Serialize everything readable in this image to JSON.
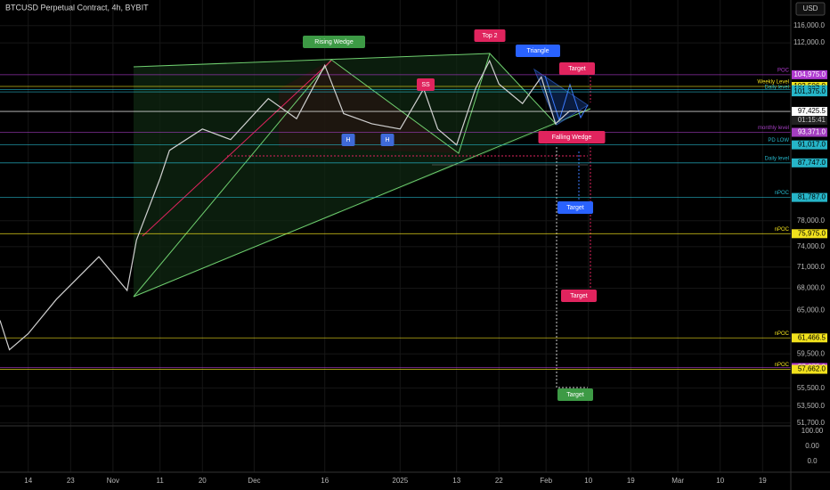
{
  "chart_data": {
    "type": "line",
    "title": "BTCUSD Perpetual Contract, 4h, BYBIT",
    "currency_button": "USD",
    "log_scale": true,
    "grid": true,
    "color": "#d0d0d0",
    "x": [
      7,
      9,
      13,
      19,
      28,
      34,
      36,
      41,
      43,
      50,
      56,
      64,
      70,
      76,
      80,
      86,
      92,
      97,
      100,
      104,
      108,
      111,
      113,
      118,
      122,
      125,
      128,
      131
    ],
    "series": [
      {
        "color": "#d0d0d0",
        "values": [
          63700,
          60000,
          62000,
          66500,
          72500,
          67700,
          75000,
          85000,
          90000,
          94000,
          92000,
          100000,
          96000,
          107000,
          97000,
          95000,
          94000,
          102000,
          94000,
          91000,
          102000,
          108000,
          103000,
          99000,
          104500,
          95000,
          97500,
          97425.5
        ]
      }
    ],
    "xlim": [
      7,
      175
    ],
    "xticks": [
      {
        "value": 13,
        "label": "14"
      },
      {
        "value": 22,
        "label": "23"
      },
      {
        "value": 31,
        "label": "Nov"
      },
      {
        "value": 41,
        "label": "11"
      },
      {
        "value": 50,
        "label": "20"
      },
      {
        "value": 61,
        "label": "Dec"
      },
      {
        "value": 76,
        "label": "16"
      },
      {
        "value": 92,
        "label": "2025"
      },
      {
        "value": 104,
        "label": "13"
      },
      {
        "value": 113,
        "label": "22"
      },
      {
        "value": 123,
        "label": "Feb"
      },
      {
        "value": 132,
        "label": "10"
      },
      {
        "value": 141,
        "label": "19"
      },
      {
        "value": 151,
        "label": "Mar"
      },
      {
        "value": 160,
        "label": "10"
      },
      {
        "value": 169,
        "label": "19"
      }
    ],
    "ylim": [
      51400,
      122200
    ],
    "yticks": [
      {
        "value": 116000,
        "label": "116,000.0"
      },
      {
        "value": 112000,
        "label": "112,000.0"
      },
      {
        "value": 78000,
        "label": "78,000.0"
      },
      {
        "value": 74000,
        "label": "74,000.0"
      },
      {
        "value": 71000,
        "label": "71,000.0"
      },
      {
        "value": 68000,
        "label": "68,000.0"
      },
      {
        "value": 65000,
        "label": "65,000.0"
      },
      {
        "value": 59500,
        "label": "59,500.0"
      },
      {
        "value": 55500,
        "label": "55,500.0"
      },
      {
        "value": 53500,
        "label": "53,500.0"
      },
      {
        "value": 51700,
        "label": "51,700.0"
      }
    ],
    "levels": [
      {
        "value": 104975,
        "label": "104,975.0",
        "name": "POC",
        "color": "#b03ad0"
      },
      {
        "value": 102506,
        "label": "102,506.0",
        "name": "Weekly Level",
        "color": "#f2e21d"
      },
      {
        "value": 101837,
        "label": "101,837.0",
        "color": "#26b5c8"
      },
      {
        "value": 101375,
        "label": "101,375.0",
        "name": "Daily level",
        "color": "#26b5c8"
      },
      {
        "value": 97425.5,
        "label": "97,425.5",
        "color": "#ffffff"
      },
      {
        "value": 93371,
        "label": "93,371.0",
        "name": "monthly level",
        "color": "#a33ec0"
      },
      {
        "value": 91017,
        "label": "91,017.0",
        "name": "PD LOW",
        "color": "#26b5c8"
      },
      {
        "value": 87747,
        "label": "87,747.0",
        "name": "Daily level",
        "color": "#26b5c8"
      },
      {
        "value": 81787,
        "label": "81,787.0",
        "name": "nPOC",
        "color": "#26b5c8"
      },
      {
        "value": 75975,
        "label": "75,975.0",
        "name": "nPOC",
        "color": "#f2e21d"
      },
      {
        "value": 61466.5,
        "label": "61,466.5",
        "name": "nPOC",
        "color": "#f2e21d"
      },
      {
        "value": 57875,
        "label": "57,875.0",
        "color": "#b03ad0"
      },
      {
        "value": 57662,
        "label": "57,662.0",
        "name": "nPOC",
        "color": "#f2e21d"
      }
    ],
    "countdown": "01:15:41",
    "annotations": [
      {
        "text": "Rising Wedge",
        "color": "#3d9a45"
      },
      {
        "text": "Top 2",
        "color": "#e0245e"
      },
      {
        "text": "Triangle",
        "color": "#2962ff"
      },
      {
        "text": "Target",
        "color": "#e0245e"
      },
      {
        "text": "SS",
        "color": "#e0245e"
      },
      {
        "text": "H",
        "color": "#3f6ad8"
      },
      {
        "text": "H",
        "color": "#3f6ad8"
      },
      {
        "text": "Falling Wedge",
        "color": "#e0245e"
      },
      {
        "text": "Target",
        "color": "#2962ff"
      },
      {
        "text": "Target",
        "color": "#e0245e"
      },
      {
        "text": "Target",
        "color": "#3d9a45"
      }
    ],
    "lower_pane_labels": [
      "100.00",
      "0.00",
      "0.0"
    ]
  }
}
